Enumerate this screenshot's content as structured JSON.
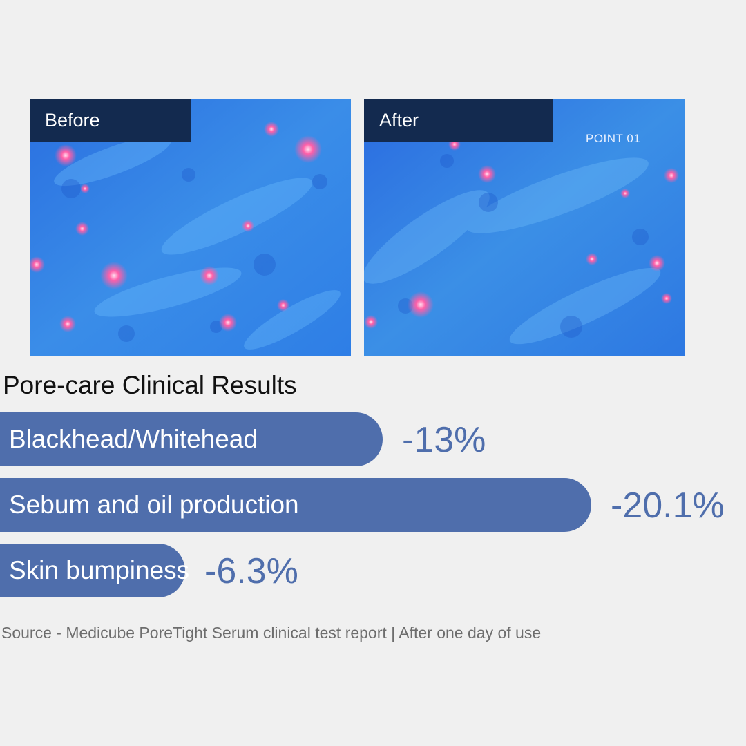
{
  "photos": {
    "before_label": "Before",
    "after_label": "After",
    "point_label": "POINT 01"
  },
  "chart_data": {
    "type": "bar",
    "title": "Pore-care Clinical Results",
    "orientation": "horizontal",
    "categories": [
      "Blackhead/Whitehead",
      "Sebum and oil production",
      "Skin bumpiness"
    ],
    "values": [
      -13,
      -20.1,
      -6.3
    ],
    "value_labels": [
      "-13%",
      "-20.1%",
      "-6.3%"
    ],
    "unit": "%",
    "bar_color": "#4f6eac"
  },
  "source_note": "Source - Medicube PoreTight Serum clinical test report | After one day of use"
}
